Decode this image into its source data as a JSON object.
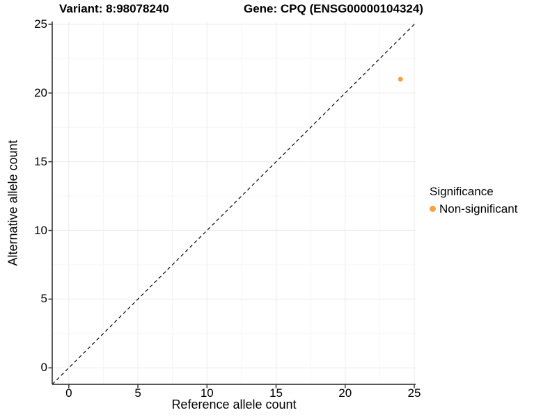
{
  "titles": {
    "left": "Variant: 8:98078240",
    "right": "Gene: CPQ (ENSG00000104324)"
  },
  "axes": {
    "x_label": "Reference allele count",
    "y_label": "Alternative allele count"
  },
  "legend": {
    "title": "Significance",
    "items": [
      {
        "label": "Non-significant",
        "color": "#F9A242"
      }
    ]
  },
  "colors": {
    "point": "#F9A242",
    "grid_major": "#EBEBEB",
    "grid_minor": "#F5F5F5",
    "axis_line": "#404040",
    "reference_line": "#000000",
    "text": "#000000",
    "background": "#FFFFFF"
  },
  "chart_data": {
    "type": "scatter",
    "title": "Variant: 8:98078240   |   Gene: CPQ (ENSG00000104324)",
    "xlabel": "Reference allele count",
    "ylabel": "Alternative allele count",
    "xlim": [
      -1.2,
      25.1
    ],
    "ylim": [
      -1.2,
      25.2
    ],
    "x_ticks": [
      0,
      5,
      10,
      15,
      20,
      25
    ],
    "y_ticks": [
      0,
      5,
      10,
      15,
      20,
      25
    ],
    "x_minor_ticks": [
      2.5,
      7.5,
      12.5,
      17.5,
      22.5
    ],
    "y_minor_ticks": [
      2.5,
      7.5,
      12.5,
      17.5,
      22.5
    ],
    "grid": true,
    "legend_position": "right",
    "series": [
      {
        "name": "Non-significant",
        "color": "#F9A242",
        "points": [
          {
            "x": 24,
            "y": 21
          }
        ]
      }
    ],
    "reference_line": {
      "equation": "y = x",
      "style": "dashed",
      "color": "#000000"
    }
  }
}
